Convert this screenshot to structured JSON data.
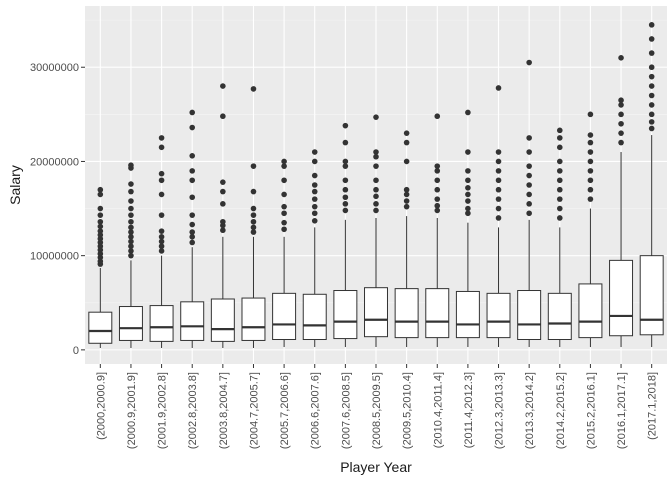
{
  "chart_data": {
    "type": "boxplot",
    "title": "",
    "xlabel": "Player Year",
    "ylabel": "Salary",
    "ylim": [
      -1500000,
      36500000
    ],
    "yticks": [
      0,
      10000000,
      20000000,
      30000000
    ],
    "ytick_labels": [
      "0",
      "10000000",
      "20000000",
      "30000000"
    ],
    "grid": true,
    "categories": [
      "(2000,2000.9]",
      "(2000.9,2001.9]",
      "(2001.9,2002.8]",
      "(2002.8,2003.8]",
      "(2003.8,2004.7]",
      "(2004.7,2005.7]",
      "(2005.7,2006.6]",
      "(2006.6,2007.6]",
      "(2007.6,2008.5]",
      "(2008.5,2009.5]",
      "(2009.5,2010.4]",
      "(2010.4,2011.4]",
      "(2011.4,2012.3]",
      "(2012.3,2013.3]",
      "(2013.3,2014.2]",
      "(2014.2,2015.2]",
      "(2015.2,2016.1]",
      "(2016.1,2017.1]",
      "(2017.1,2018]"
    ],
    "boxes": [
      {
        "min": 200000,
        "q1": 700000,
        "median": 2000000,
        "q3": 4000000,
        "max": 8700000,
        "outliers": [
          9100000,
          9400000,
          9800000,
          10200000,
          10600000,
          11000000,
          11400000,
          11800000,
          12200000,
          12600000,
          13100000,
          13600000,
          14300000,
          15000000,
          16500000,
          17000000
        ]
      },
      {
        "min": 200000,
        "q1": 1000000,
        "median": 2300000,
        "q3": 4600000,
        "max": 9500000,
        "outliers": [
          10000000,
          10500000,
          11000000,
          11500000,
          12000000,
          12500000,
          13000000,
          13600000,
          14300000,
          15000000,
          15800000,
          16800000,
          17600000,
          19300000,
          19600000
        ]
      },
      {
        "min": 200000,
        "q1": 900000,
        "median": 2400000,
        "q3": 4700000,
        "max": 10000000,
        "outliers": [
          10500000,
          11000000,
          11500000,
          12000000,
          12600000,
          14300000,
          16500000,
          18000000,
          18700000,
          21500000,
          22500000
        ]
      },
      {
        "min": 200000,
        "q1": 1000000,
        "median": 2500000,
        "q3": 5100000,
        "max": 10900000,
        "outliers": [
          11400000,
          12000000,
          12500000,
          13300000,
          14300000,
          16200000,
          18000000,
          19000000,
          20600000,
          23600000,
          25200000
        ]
      },
      {
        "min": 200000,
        "q1": 900000,
        "median": 2200000,
        "q3": 5400000,
        "max": 12000000,
        "outliers": [
          12700000,
          13200000,
          13600000,
          15500000,
          16800000,
          17800000,
          24800000,
          28000000
        ]
      },
      {
        "min": 200000,
        "q1": 1000000,
        "median": 2400000,
        "q3": 5500000,
        "max": 12000000,
        "outliers": [
          12500000,
          13000000,
          13600000,
          14300000,
          15000000,
          16800000,
          19500000,
          27700000
        ]
      },
      {
        "min": 300000,
        "q1": 1100000,
        "median": 2700000,
        "q3": 6000000,
        "max": 12000000,
        "outliers": [
          12800000,
          13500000,
          14500000,
          15200000,
          16500000,
          18000000,
          19500000,
          20000000
        ]
      },
      {
        "min": 300000,
        "q1": 1100000,
        "median": 2600000,
        "q3": 5900000,
        "max": 13000000,
        "outliers": [
          13700000,
          14500000,
          15200000,
          16000000,
          16800000,
          17500000,
          18500000,
          20000000,
          21000000
        ]
      },
      {
        "min": 300000,
        "q1": 1200000,
        "median": 3000000,
        "q3": 6300000,
        "max": 13800000,
        "outliers": [
          14800000,
          15500000,
          16200000,
          17000000,
          18000000,
          19500000,
          20000000,
          22000000,
          23800000
        ]
      },
      {
        "min": 300000,
        "q1": 1400000,
        "median": 3200000,
        "q3": 6600000,
        "max": 14000000,
        "outliers": [
          14800000,
          15500000,
          16300000,
          17000000,
          18000000,
          19500000,
          20500000,
          21000000,
          24700000
        ]
      },
      {
        "min": 300000,
        "q1": 1300000,
        "median": 3000000,
        "q3": 6500000,
        "max": 14200000,
        "outliers": [
          15200000,
          15800000,
          16500000,
          17000000,
          20000000,
          22000000,
          23000000
        ]
      },
      {
        "min": 300000,
        "q1": 1300000,
        "median": 3000000,
        "q3": 6500000,
        "max": 14000000,
        "outliers": [
          14800000,
          15300000,
          16000000,
          17000000,
          18000000,
          19000000,
          19500000,
          24800000
        ]
      },
      {
        "min": 300000,
        "q1": 1300000,
        "median": 2700000,
        "q3": 6200000,
        "max": 13500000,
        "outliers": [
          14500000,
          15000000,
          15800000,
          16500000,
          17200000,
          18000000,
          19000000,
          21000000,
          25200000
        ]
      },
      {
        "min": 300000,
        "q1": 1300000,
        "median": 3000000,
        "q3": 6000000,
        "max": 13000000,
        "outliers": [
          14000000,
          15000000,
          16000000,
          17000000,
          18000000,
          19000000,
          20000000,
          21000000,
          27800000
        ]
      },
      {
        "min": 300000,
        "q1": 1100000,
        "median": 2700000,
        "q3": 6300000,
        "max": 13800000,
        "outliers": [
          14500000,
          15500000,
          16500000,
          17500000,
          18500000,
          19500000,
          21000000,
          22500000,
          30500000
        ]
      },
      {
        "min": 300000,
        "q1": 1100000,
        "median": 2800000,
        "q3": 6000000,
        "max": 13000000,
        "outliers": [
          14000000,
          15000000,
          16000000,
          17000000,
          18000000,
          19000000,
          20000000,
          21500000,
          22500000,
          23300000
        ]
      },
      {
        "min": 300000,
        "q1": 1300000,
        "median": 3000000,
        "q3": 7000000,
        "max": 15000000,
        "outliers": [
          16000000,
          17000000,
          18000000,
          19000000,
          20000000,
          21000000,
          22000000,
          22800000,
          25000000
        ]
      },
      {
        "min": 300000,
        "q1": 1500000,
        "median": 3600000,
        "q3": 9500000,
        "max": 21000000,
        "outliers": [
          22000000,
          23000000,
          24000000,
          25000000,
          26000000,
          26500000,
          31000000
        ]
      },
      {
        "min": 300000,
        "q1": 1600000,
        "median": 3200000,
        "q3": 10000000,
        "max": 22800000,
        "outliers": [
          23500000,
          24200000,
          25000000,
          26000000,
          27000000,
          28000000,
          29000000,
          30000000,
          31500000,
          33000000,
          34500000
        ]
      }
    ]
  },
  "colors": {
    "panel_bg": "#ebebeb",
    "grid_major": "#ffffff",
    "grid_minor": "#f5f5f5",
    "box_stroke": "#333333",
    "box_fill": "#ffffff",
    "outlier": "#333333",
    "tick_text": "#4d4d4d",
    "title_text": "#1a1a1a"
  }
}
